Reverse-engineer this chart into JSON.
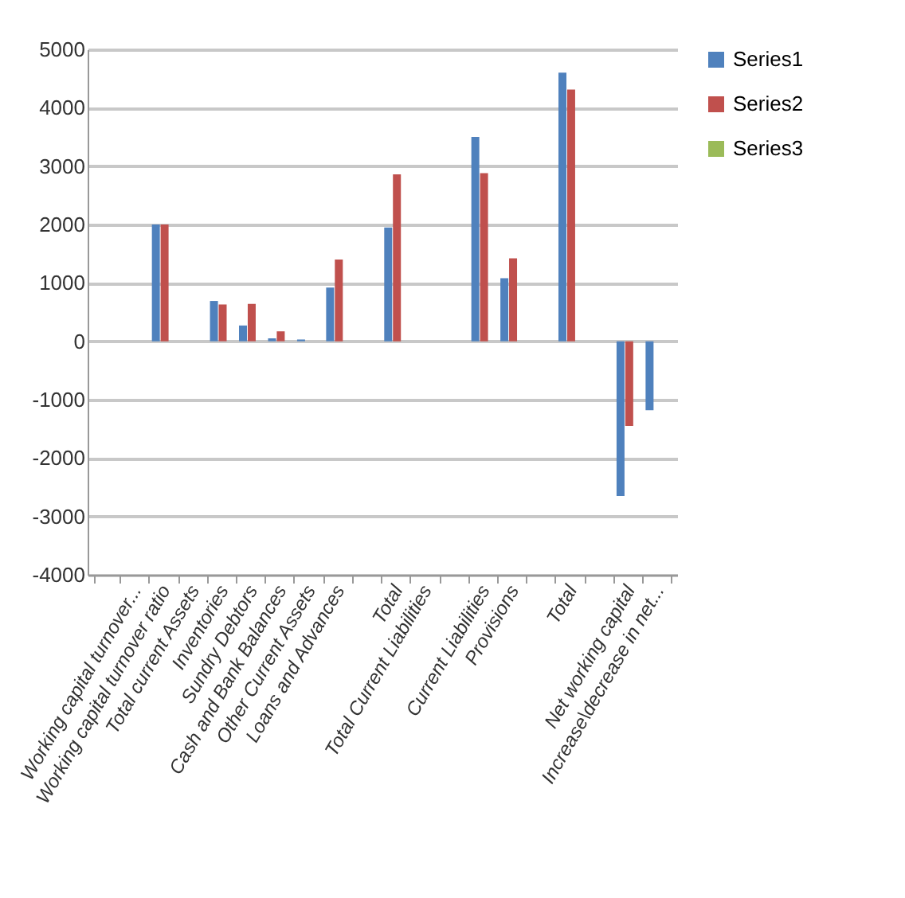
{
  "chart_data": {
    "type": "bar",
    "categories": [
      null,
      "Working capital turnover...",
      "Working capital turnover ratio",
      "Total current Assets",
      "Inventories",
      "Sundry Debtors",
      "Cash and Bank Balances",
      "Other Current Assets",
      "Loans and Advances",
      null,
      "Total",
      "Total Current Liabilities",
      null,
      "Current Liabilities",
      "Provisions",
      null,
      "Total",
      null,
      "Net working capital",
      "Increase\\decrease in net..."
    ],
    "series": [
      {
        "name": "Series1",
        "color": "#4f81bd",
        "values": [
          null,
          null,
          2000,
          null,
          690,
          270,
          50,
          30,
          920,
          null,
          1950,
          null,
          null,
          3500,
          1080,
          null,
          4600,
          null,
          -2650,
          -1180
        ]
      },
      {
        "name": "Series2",
        "color": "#c0504d",
        "values": [
          null,
          null,
          2000,
          null,
          630,
          640,
          170,
          null,
          1400,
          null,
          2860,
          null,
          null,
          2880,
          1420,
          null,
          4310,
          null,
          -1450,
          null
        ]
      },
      {
        "name": "Series3",
        "color": "#9bbb59",
        "values": [
          null,
          null,
          null,
          null,
          null,
          null,
          null,
          null,
          null,
          null,
          null,
          null,
          null,
          null,
          null,
          null,
          null,
          null,
          null,
          null
        ]
      }
    ],
    "ylim": [
      -4000,
      5000
    ],
    "yticks": [
      -4000,
      -3000,
      -2000,
      -1000,
      0,
      1000,
      2000,
      3000,
      4000,
      5000
    ],
    "grid": "y",
    "legend": "right"
  }
}
